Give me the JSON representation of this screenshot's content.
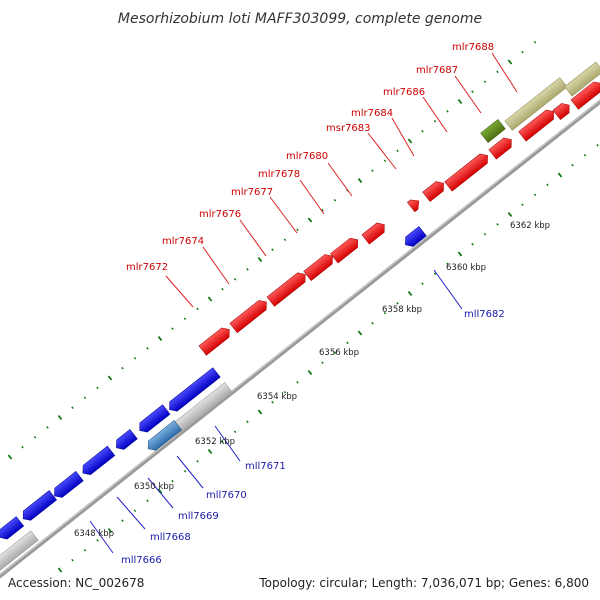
{
  "title": "Mesorhizobium loti MAFF303099, complete genome",
  "footer": {
    "accession": "Accession: NC_002678",
    "summary": "Topology: circular; Length: 7,036,071 bp; Genes: 6,800"
  },
  "colors": {
    "forward_gene": "#ee1111",
    "reverse_gene": "#1111dd",
    "forward_label": "#cc0000",
    "reverse_label": "#1a1aa8",
    "leader_forward": "#dd2222",
    "leader_reverse": "#2222cc",
    "tick": "#117711",
    "backbone": "#888888",
    "pseudo_gray": "#c4c4c4",
    "khaki": "#c2c08a",
    "olive": "#5f8a1e",
    "steel": "#4a84c0"
  },
  "scale": {
    "labels": [
      "6348 kbp",
      "6350 kbp",
      "6352 kbp",
      "6354 kbp",
      "6356 kbp",
      "6358 kbp",
      "6360 kbp",
      "6362 kbp"
    ]
  },
  "forward_labels": [
    "mlr7672",
    "mlr7674",
    "mlr7676",
    "mlr7677",
    "mlr7678",
    "mlr7680",
    "msr7683",
    "mlr7684",
    "mlr7686",
    "mlr7687",
    "mlr7688"
  ],
  "reverse_labels": [
    "mll7666",
    "mll7668",
    "mll7669",
    "mll7670",
    "mll7671",
    "mll7682"
  ]
}
